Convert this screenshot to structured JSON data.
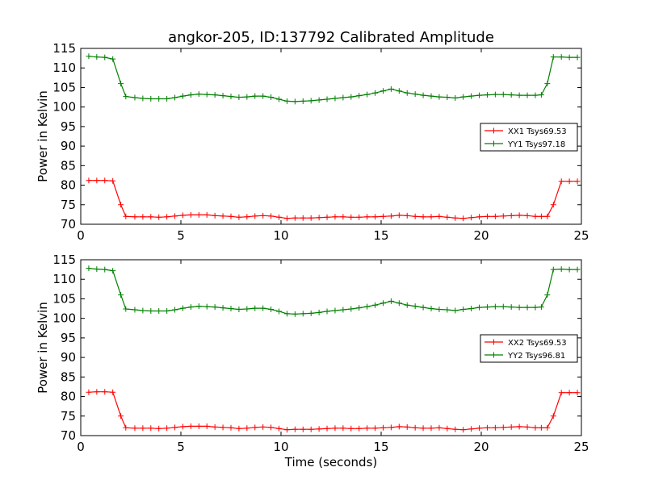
{
  "chart_data": [
    {
      "type": "line",
      "title": "angkor-205, ID:137792 Calibrated Amplitude",
      "xlabel": "",
      "ylabel": "Power in Kelvin",
      "xlim": [
        0,
        25
      ],
      "ylim": [
        70,
        115
      ],
      "x_ticks": [
        "0",
        "5",
        "10",
        "15",
        "20",
        "25"
      ],
      "y_ticks": [
        "70",
        "75",
        "80",
        "85",
        "90",
        "95",
        "100",
        "105",
        "110",
        "115"
      ],
      "legend_position": "right",
      "grid": false,
      "marker": "+",
      "x": [
        0.4,
        0.8,
        1.2,
        1.6,
        2.0,
        2.25,
        2.7,
        3.1,
        3.5,
        3.9,
        4.3,
        4.7,
        5.1,
        5.5,
        5.9,
        6.3,
        6.7,
        7.1,
        7.5,
        7.9,
        8.3,
        8.7,
        9.1,
        9.5,
        9.9,
        10.3,
        10.7,
        11.1,
        11.5,
        11.9,
        12.3,
        12.7,
        13.1,
        13.5,
        13.9,
        14.3,
        14.7,
        15.1,
        15.5,
        15.9,
        16.3,
        16.7,
        17.1,
        17.5,
        17.9,
        18.3,
        18.7,
        19.1,
        19.5,
        19.9,
        20.3,
        20.7,
        21.1,
        21.5,
        21.9,
        22.3,
        22.7,
        23.0,
        23.3,
        23.6,
        24.0,
        24.4,
        24.8
      ],
      "series": [
        {
          "name": "XX1 Tsys69.53",
          "color": "#ff0000",
          "values": [
            81.2,
            81.2,
            81.2,
            81.1,
            75.0,
            72.0,
            71.9,
            71.9,
            71.9,
            71.8,
            71.9,
            72.1,
            72.3,
            72.4,
            72.4,
            72.4,
            72.2,
            72.1,
            72.0,
            71.8,
            71.9,
            72.1,
            72.2,
            72.1,
            71.8,
            71.5,
            71.6,
            71.6,
            71.6,
            71.7,
            71.8,
            71.9,
            71.9,
            71.8,
            71.8,
            71.9,
            71.9,
            72.0,
            72.1,
            72.3,
            72.2,
            72.0,
            71.9,
            71.9,
            72.0,
            71.8,
            71.6,
            71.5,
            71.7,
            71.9,
            72.0,
            72.0,
            72.1,
            72.2,
            72.3,
            72.2,
            72.0,
            72.0,
            72.0,
            75.0,
            81.0,
            81.0,
            81.0
          ]
        },
        {
          "name": "YY1 Tsys97.18",
          "color": "#007f00",
          "values": [
            113.0,
            112.8,
            112.7,
            112.3,
            106.0,
            102.7,
            102.4,
            102.2,
            102.1,
            102.1,
            102.1,
            102.4,
            102.8,
            103.1,
            103.3,
            103.2,
            103.1,
            102.9,
            102.7,
            102.5,
            102.6,
            102.8,
            102.8,
            102.5,
            102.0,
            101.5,
            101.4,
            101.5,
            101.6,
            101.8,
            102.0,
            102.2,
            102.4,
            102.6,
            102.9,
            103.2,
            103.6,
            104.1,
            104.6,
            104.1,
            103.6,
            103.3,
            103.0,
            102.8,
            102.6,
            102.5,
            102.3,
            102.6,
            102.8,
            103.0,
            103.1,
            103.2,
            103.2,
            103.1,
            103.0,
            103.0,
            103.0,
            103.1,
            106.0,
            112.8,
            112.8,
            112.7,
            112.7
          ]
        }
      ]
    },
    {
      "type": "line",
      "title": "",
      "xlabel": "Time (seconds)",
      "ylabel": "Power in Kelvin",
      "xlim": [
        0,
        25
      ],
      "ylim": [
        70,
        115
      ],
      "x_ticks": [
        "0",
        "5",
        "10",
        "15",
        "20",
        "25"
      ],
      "y_ticks": [
        "70",
        "75",
        "80",
        "85",
        "90",
        "95",
        "100",
        "105",
        "110",
        "115"
      ],
      "legend_position": "right",
      "grid": false,
      "marker": "+",
      "x": [
        0.4,
        0.8,
        1.2,
        1.6,
        2.0,
        2.25,
        2.7,
        3.1,
        3.5,
        3.9,
        4.3,
        4.7,
        5.1,
        5.5,
        5.9,
        6.3,
        6.7,
        7.1,
        7.5,
        7.9,
        8.3,
        8.7,
        9.1,
        9.5,
        9.9,
        10.3,
        10.7,
        11.1,
        11.5,
        11.9,
        12.3,
        12.7,
        13.1,
        13.5,
        13.9,
        14.3,
        14.7,
        15.1,
        15.5,
        15.9,
        16.3,
        16.7,
        17.1,
        17.5,
        17.9,
        18.3,
        18.7,
        19.1,
        19.5,
        19.9,
        20.3,
        20.7,
        21.1,
        21.5,
        21.9,
        22.3,
        22.7,
        23.0,
        23.3,
        23.6,
        24.0,
        24.4,
        24.8
      ],
      "series": [
        {
          "name": "XX2 Tsys69.53",
          "color": "#ff0000",
          "values": [
            81.1,
            81.2,
            81.2,
            81.1,
            75.0,
            72.0,
            71.9,
            71.9,
            71.9,
            71.8,
            71.9,
            72.1,
            72.3,
            72.4,
            72.4,
            72.4,
            72.2,
            72.1,
            72.0,
            71.8,
            71.9,
            72.1,
            72.2,
            72.1,
            71.8,
            71.5,
            71.6,
            71.6,
            71.6,
            71.7,
            71.8,
            71.9,
            71.9,
            71.8,
            71.8,
            71.9,
            71.9,
            72.0,
            72.1,
            72.3,
            72.2,
            72.0,
            71.9,
            71.9,
            72.0,
            71.8,
            71.6,
            71.5,
            71.7,
            71.9,
            72.0,
            72.0,
            72.1,
            72.2,
            72.3,
            72.2,
            72.0,
            72.0,
            72.0,
            75.0,
            81.0,
            81.0,
            81.0
          ]
        },
        {
          "name": "YY2 Tsys96.81",
          "color": "#007f00",
          "values": [
            112.8,
            112.6,
            112.5,
            112.2,
            106.0,
            102.4,
            102.2,
            102.0,
            101.9,
            101.9,
            101.9,
            102.2,
            102.6,
            102.9,
            103.1,
            103.0,
            102.9,
            102.7,
            102.5,
            102.3,
            102.4,
            102.6,
            102.6,
            102.3,
            101.8,
            101.2,
            101.1,
            101.2,
            101.3,
            101.5,
            101.8,
            102.0,
            102.2,
            102.4,
            102.7,
            103.0,
            103.4,
            103.9,
            104.4,
            103.9,
            103.4,
            103.1,
            102.8,
            102.5,
            102.3,
            102.2,
            102.0,
            102.3,
            102.5,
            102.8,
            102.9,
            103.0,
            103.0,
            102.9,
            102.8,
            102.8,
            102.8,
            102.9,
            106.0,
            112.5,
            112.6,
            112.5,
            112.5
          ]
        }
      ]
    }
  ]
}
